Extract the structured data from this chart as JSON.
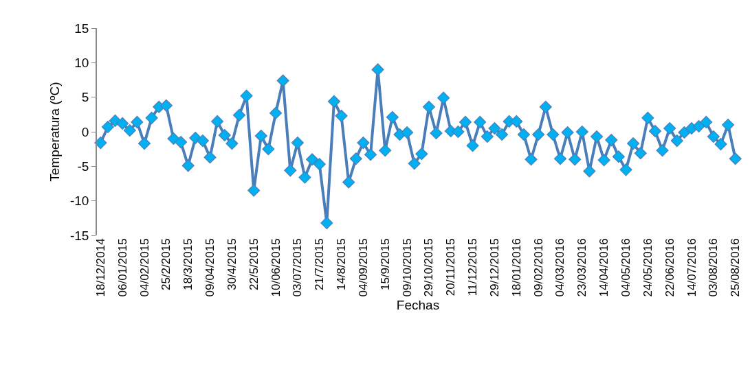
{
  "chart_data": {
    "type": "line",
    "xlabel": "Fechas",
    "ylabel": "Temperatura (ºC)",
    "categories": [
      "18/12/2014",
      null,
      null,
      "06/01/2015",
      null,
      null,
      "04/02/2015",
      null,
      null,
      "25/2/2015",
      null,
      null,
      "18/3/2015",
      null,
      null,
      "09/04/2015",
      null,
      null,
      "30/4/2015",
      null,
      null,
      "22/5/2015",
      null,
      null,
      "10/06/2015",
      null,
      null,
      "03/07/2015",
      null,
      null,
      "21/7/2015",
      null,
      null,
      "14/8/2015",
      null,
      null,
      "04/09/2015",
      null,
      null,
      "15/9/2015",
      null,
      null,
      "09/10/2015",
      null,
      null,
      "29/10/2015",
      null,
      null,
      "20/11/2015",
      null,
      null,
      "11/12/2015",
      null,
      null,
      "29/12/2015",
      null,
      null,
      "18/01/2016",
      null,
      null,
      "09/02/2016",
      null,
      null,
      "04/03/2016",
      null,
      null,
      "23/03/2016",
      null,
      null,
      "14/04/2016",
      null,
      null,
      "04/05/2016",
      null,
      null,
      "24/05/2016",
      null,
      null,
      "22/06/2016",
      null,
      null,
      "14/07/2016",
      null,
      null,
      "03/08/2016",
      null,
      null,
      "25/08/2016"
    ],
    "series": [
      {
        "color": "#4a7ebb",
        "values": [
          -1.6,
          0.7,
          1.6,
          1.2,
          0.2,
          1.4,
          -1.7,
          2.0,
          3.6,
          3.8,
          -1.0,
          -1.5,
          -4.9,
          -0.9,
          -1.3,
          -3.7,
          1.5,
          -0.5,
          -1.7,
          2.4,
          5.2,
          -8.5,
          -0.6,
          -2.5,
          2.7,
          7.4,
          -5.6,
          -1.6,
          -6.6,
          -4.0,
          -4.7,
          -13.2,
          4.4,
          2.3,
          -7.3,
          -3.9,
          -1.6,
          -3.3,
          9.0,
          -2.7,
          2.1,
          -0.4,
          -0.1,
          -4.6,
          -3.2,
          3.6,
          -0.2,
          4.9,
          0.1,
          0.0,
          1.4,
          -2.0,
          1.4,
          -0.7,
          0.5,
          -0.4,
          1.5,
          1.5,
          -0.4,
          -4.0,
          -0.4,
          3.6,
          -0.4,
          -3.9,
          -0.1,
          -4.0,
          0.0,
          -5.7,
          -0.7,
          -4.1,
          -1.2,
          -3.6,
          -5.5,
          -1.7,
          -3.1,
          2.0,
          0.1,
          -2.7,
          0.5,
          -1.3,
          -0.1,
          0.5,
          0.8,
          1.4,
          -0.7,
          -1.8,
          1.0,
          -3.9
        ]
      }
    ],
    "ylim": [
      -15,
      15
    ],
    "yticks": [
      -15,
      -10,
      -5,
      0,
      5,
      10,
      15
    ],
    "grid": false,
    "marker": "diamond",
    "line_style": "solid"
  }
}
